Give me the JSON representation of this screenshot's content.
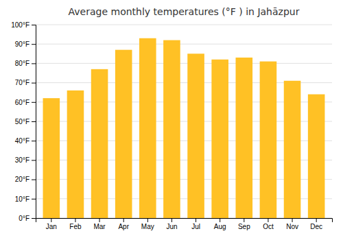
{
  "chart_data": {
    "type": "bar",
    "title": "Average monthly temperatures (°F ) in Jahāzpur",
    "categories": [
      "Jan",
      "Feb",
      "Mar",
      "Apr",
      "May",
      "Jun",
      "Jul",
      "Aug",
      "Sep",
      "Oct",
      "Nov",
      "Dec"
    ],
    "values": [
      62,
      66,
      77,
      87,
      93,
      92,
      85,
      82,
      83,
      81,
      71,
      64
    ],
    "color": "#FFC125",
    "ylim": [
      0,
      100
    ],
    "yticks": [
      {
        "value": 0,
        "label": "0°F"
      },
      {
        "value": 10,
        "label": "10°F"
      },
      {
        "value": 20,
        "label": "20°F"
      },
      {
        "value": 30,
        "label": "30°F"
      },
      {
        "value": 40,
        "label": "40°F"
      },
      {
        "value": 50,
        "label": "50°F"
      },
      {
        "value": 60,
        "label": "60°F"
      },
      {
        "value": 70,
        "label": "70°F"
      },
      {
        "value": 80,
        "label": "80°F"
      },
      {
        "value": 90,
        "label": "90°F"
      },
      {
        "value": 100,
        "label": "100°F"
      }
    ],
    "grid": true
  }
}
